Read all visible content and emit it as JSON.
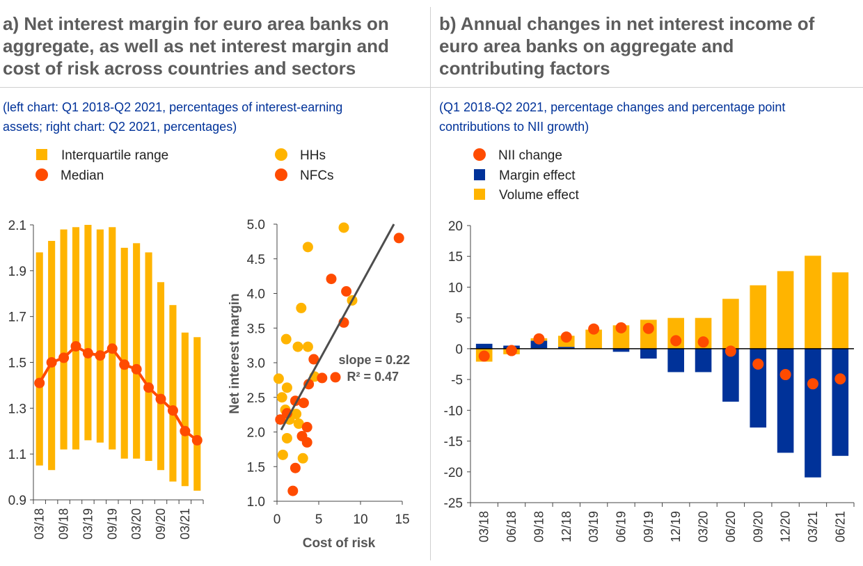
{
  "panel_a": {
    "title_lines": [
      "a) Net interest margin for euro area banks on",
      "aggregate, as well as net interest margin and",
      "cost of risk across countries and sectors"
    ],
    "subtitle_lines": [
      "(left chart: Q1 2018-Q2 2021, percentages of interest-earning",
      "assets; right chart: Q2 2021, percentages)"
    ],
    "legend": {
      "iqr": "Interquartile range",
      "median": "Median",
      "hhs": "HHs",
      "nfcs": "NFCs"
    }
  },
  "panel_b": {
    "title_lines": [
      "b) Annual changes in net interest income of",
      "euro area banks on aggregate and",
      "contributing factors"
    ],
    "subtitle_lines": [
      "(Q1 2018-Q2 2021, percentage changes and percentage point",
      "contributions to NII growth)"
    ],
    "legend": {
      "nii": "NII change",
      "margin": "Margin effect",
      "volume": "Volume effect"
    }
  },
  "colors": {
    "yellow": "#FFB400",
    "orange": "#FF4B00",
    "blue": "#003299",
    "title_gray": "#5c5c5c",
    "line_gray": "#4d4d4d"
  },
  "chart_data": [
    {
      "id": "nim-range",
      "type": "bar",
      "quarters": [
        "03/18",
        "06/18",
        "09/18",
        "12/18",
        "03/19",
        "06/19",
        "09/19",
        "12/19",
        "03/20",
        "06/20",
        "09/20",
        "12/20",
        "03/21",
        "06/21"
      ],
      "tick_labels": [
        "03/18",
        "09/18",
        "03/19",
        "09/19",
        "03/20",
        "09/20",
        "03/21"
      ],
      "iqr_low": [
        1.05,
        1.03,
        1.12,
        1.12,
        1.16,
        1.15,
        1.12,
        1.08,
        1.08,
        1.07,
        1.03,
        0.98,
        0.96,
        0.94
      ],
      "iqr_high": [
        1.98,
        2.03,
        2.08,
        2.09,
        2.1,
        2.08,
        2.09,
        2.0,
        2.02,
        1.98,
        1.85,
        1.75,
        1.63,
        1.61
      ],
      "median": [
        1.41,
        1.5,
        1.52,
        1.57,
        1.54,
        1.53,
        1.56,
        1.49,
        1.47,
        1.39,
        1.34,
        1.29,
        1.2,
        1.16
      ],
      "ylim": [
        0.9,
        2.1
      ],
      "yticks": [
        "2.1",
        "1.9",
        "1.7",
        "1.5",
        "1.3",
        "1.1",
        "0.9"
      ]
    },
    {
      "id": "nim-vs-cor",
      "type": "scatter",
      "xlabel": "Cost of risk",
      "ylabel": "Net interest margin",
      "xlim": [
        0,
        15
      ],
      "ylim": [
        1.0,
        5.0
      ],
      "xticks": [
        "0",
        "5",
        "10",
        "15"
      ],
      "yticks": [
        "5.0",
        "4.5",
        "4.0",
        "3.5",
        "3.0",
        "2.5",
        "2.0",
        "1.5",
        "1.0"
      ],
      "hhs": [
        [
          0.2,
          2.77
        ],
        [
          0.6,
          2.5
        ],
        [
          1.0,
          2.32
        ],
        [
          1.1,
          3.34
        ],
        [
          1.2,
          2.64
        ],
        [
          0.7,
          1.67
        ],
        [
          1.5,
          2.18
        ],
        [
          1.2,
          1.91
        ],
        [
          2.3,
          2.26
        ],
        [
          2.5,
          3.23
        ],
        [
          2.9,
          3.79
        ],
        [
          3.7,
          3.23
        ],
        [
          3.7,
          4.67
        ],
        [
          3.1,
          1.62
        ],
        [
          2.6,
          2.12
        ],
        [
          4.5,
          2.8
        ],
        [
          8.0,
          4.95
        ],
        [
          9.0,
          3.9
        ]
      ],
      "nfcs": [
        [
          0.4,
          2.18
        ],
        [
          1.2,
          2.27
        ],
        [
          2.2,
          2.45
        ],
        [
          2.2,
          1.48
        ],
        [
          1.9,
          1.15
        ],
        [
          3.0,
          1.94
        ],
        [
          3.2,
          2.42
        ],
        [
          3.6,
          2.07
        ],
        [
          3.6,
          1.85
        ],
        [
          3.8,
          2.69
        ],
        [
          4.4,
          3.05
        ],
        [
          5.4,
          2.78
        ],
        [
          6.5,
          4.21
        ],
        [
          7.0,
          2.79
        ],
        [
          8.0,
          3.58
        ],
        [
          8.3,
          4.03
        ],
        [
          14.6,
          4.8
        ]
      ],
      "trendline": [
        [
          0.5,
          2.03
        ],
        [
          14.0,
          5.0
        ]
      ],
      "annotation": [
        "slope = 0.22",
        "R² = 0.47"
      ]
    },
    {
      "id": "nii-contrib",
      "type": "bar",
      "categories": [
        "03/18",
        "06/18",
        "09/18",
        "12/18",
        "03/19",
        "06/19",
        "09/19",
        "12/19",
        "03/20",
        "06/20",
        "09/20",
        "12/20",
        "03/21",
        "06/21"
      ],
      "ylim": [
        -25,
        20
      ],
      "yticks": [
        "20",
        "15",
        "10",
        "5",
        "0",
        "-5",
        "-10",
        "-15",
        "-20",
        "-25"
      ],
      "series": [
        {
          "name": "Margin effect",
          "values": [
            0.8,
            0.5,
            1.3,
            0.3,
            0.0,
            -0.5,
            -1.6,
            -3.8,
            -3.8,
            -8.6,
            -12.8,
            -16.9,
            -20.9,
            -17.4
          ]
        },
        {
          "name": "Volume effect",
          "values": [
            -2.1,
            -0.9,
            0.4,
            1.8,
            3.1,
            3.8,
            4.7,
            5.0,
            5.0,
            8.1,
            10.3,
            12.6,
            15.1,
            12.4
          ]
        },
        {
          "name": "NII change",
          "values": [
            -1.2,
            -0.3,
            1.6,
            1.9,
            3.2,
            3.4,
            3.3,
            1.3,
            1.1,
            -0.4,
            -2.5,
            -4.2,
            -5.7,
            -4.9
          ]
        }
      ]
    }
  ]
}
